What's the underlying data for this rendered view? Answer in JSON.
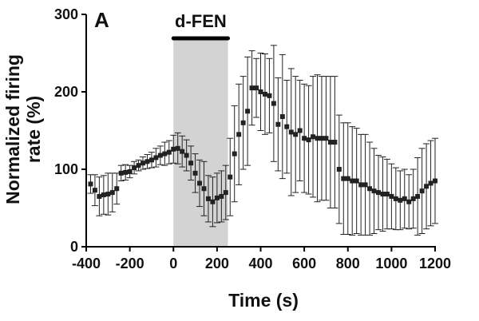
{
  "chart_data": {
    "type": "scatter",
    "panel_label": "A",
    "xlabel": "Time (s)",
    "ylabel_line1": "Normalized firing",
    "ylabel_line2": "rate (%)",
    "xlim": [
      -400,
      1200
    ],
    "ylim": [
      0,
      300
    ],
    "xticks": [
      -400,
      -200,
      0,
      200,
      400,
      600,
      800,
      1000,
      1200
    ],
    "yticks": [
      0,
      100,
      200,
      300
    ],
    "grid": false,
    "legend": "none",
    "annotation": {
      "label": "d-FEN",
      "x_start": 0,
      "x_end": 250
    },
    "colors": {
      "marker": "#222222",
      "shade": "#d3d3d3",
      "axis": "#000000"
    },
    "series": [
      {
        "x": [
          -380,
          -360,
          -340,
          -320,
          -300,
          -280,
          -260,
          -240,
          -220,
          -200,
          -180,
          -160,
          -140,
          -120,
          -100,
          -80,
          -60,
          -40,
          -20,
          0,
          20,
          40,
          60,
          80,
          100,
          120,
          140,
          160,
          180,
          200,
          220,
          240,
          260,
          280,
          300,
          320,
          340,
          360,
          380,
          400,
          420,
          440,
          460,
          480,
          500,
          520,
          540,
          560,
          580,
          600,
          620,
          640,
          660,
          680,
          700,
          720,
          740,
          760,
          780,
          800,
          820,
          840,
          860,
          880,
          900,
          920,
          940,
          960,
          980,
          1000,
          1020,
          1040,
          1060,
          1080,
          1100,
          1120,
          1140,
          1160,
          1180,
          1200
        ],
        "y": [
          81,
          73,
          65,
          67,
          68,
          70,
          75,
          95,
          96,
          97,
          102,
          105,
          108,
          110,
          112,
          115,
          118,
          120,
          122,
          126,
          127,
          123,
          118,
          108,
          95,
          82,
          75,
          62,
          58,
          63,
          65,
          70,
          90,
          120,
          145,
          160,
          175,
          205,
          205,
          200,
          197,
          195,
          185,
          158,
          168,
          155,
          148,
          145,
          150,
          140,
          138,
          142,
          140,
          140,
          140,
          135,
          135,
          100,
          88,
          88,
          85,
          85,
          80,
          80,
          75,
          72,
          70,
          68,
          68,
          65,
          62,
          60,
          62,
          58,
          62,
          65,
          72,
          78,
          82,
          85
        ],
        "err": [
          12,
          20,
          25,
          25,
          27,
          25,
          20,
          10,
          10,
          8,
          8,
          7,
          8,
          9,
          10,
          12,
          12,
          15,
          15,
          18,
          20,
          20,
          20,
          22,
          25,
          30,
          35,
          30,
          32,
          32,
          33,
          35,
          50,
          62,
          65,
          60,
          70,
          48,
          38,
          50,
          52,
          48,
          75,
          60,
          80,
          60,
          82,
          75,
          65,
          70,
          70,
          78,
          82,
          80,
          80,
          85,
          85,
          70,
          72,
          72,
          70,
          68,
          65,
          65,
          60,
          55,
          48,
          48,
          45,
          42,
          40,
          38,
          38,
          35,
          38,
          50,
          55,
          55,
          55,
          55
        ]
      }
    ]
  }
}
